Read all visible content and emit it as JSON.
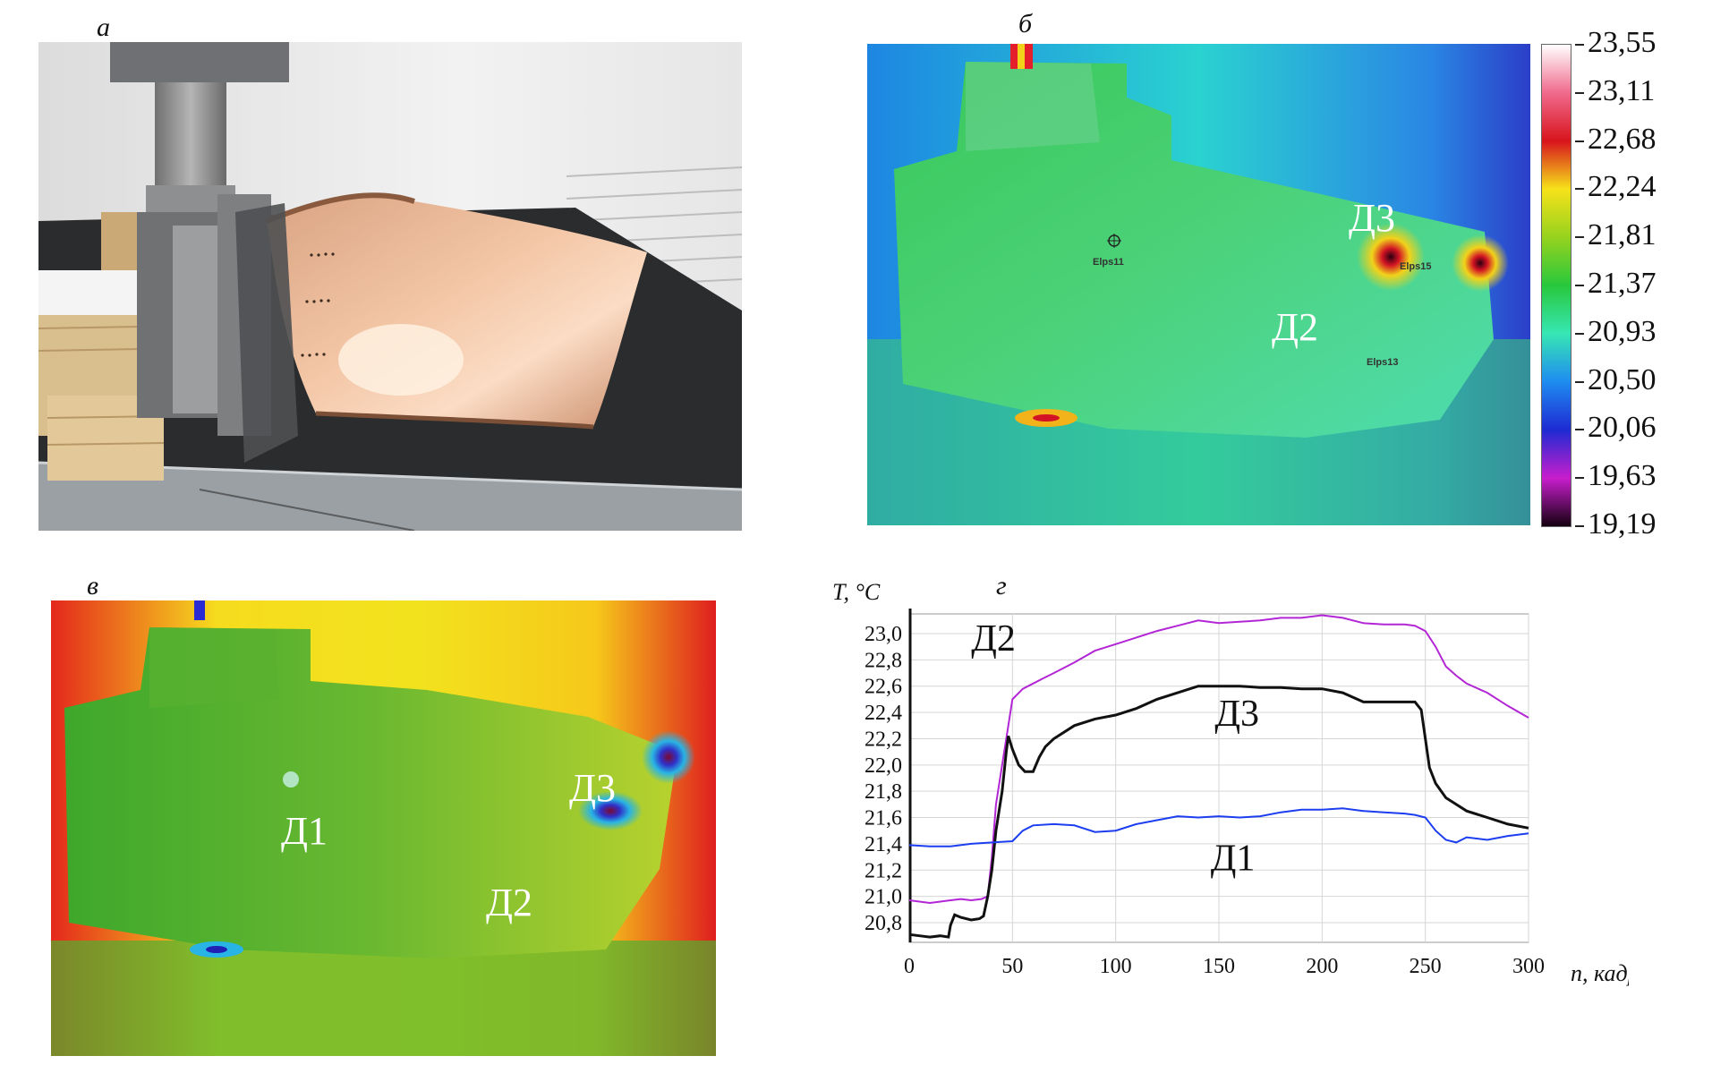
{
  "panels": {
    "a": {
      "letter": "а"
    },
    "b": {
      "letter": "б",
      "labels": {
        "d3": "Д3",
        "d2": "Д2"
      },
      "markers": {
        "e11": "Elps11",
        "e15": "Elps15",
        "e13": "Elps13"
      },
      "scale": [
        "23,55",
        "23,11",
        "22,68",
        "22,24",
        "21,81",
        "21,37",
        "20,93",
        "20,50",
        "20,06",
        "19,63",
        "19,19"
      ],
      "scale_colors": [
        "#ffffff",
        "#f06a8c",
        "#d8141c",
        "#f6e21a",
        "#96d21e",
        "#28c83c",
        "#37e6b4",
        "#1e8cf0",
        "#1e2ad2",
        "#c81ecd",
        "#14000f"
      ]
    },
    "c": {
      "letter": "в",
      "labels": {
        "d3": "Д3",
        "d1": "Д1",
        "d2": "Д2"
      }
    },
    "d": {
      "letter": "г"
    }
  },
  "chart_data": {
    "type": "line",
    "ylabel": "T, °C",
    "xlabel": "n, кадр",
    "xlim": [
      0,
      300
    ],
    "ylim": [
      20.65,
      23.15
    ],
    "x_ticks": [
      "0",
      "50",
      "100",
      "150",
      "200",
      "250",
      "300"
    ],
    "y_ticks": [
      "20,8",
      "21,0",
      "21,2",
      "21,4",
      "21,6",
      "21,8",
      "22,0",
      "22,2",
      "22,4",
      "22,6",
      "22,8",
      "23,0"
    ],
    "grid": true,
    "series": [
      {
        "name": "Д2",
        "color": "#b326d6",
        "x": [
          0,
          5,
          10,
          15,
          20,
          25,
          30,
          35,
          38,
          40,
          42,
          45,
          48,
          50,
          55,
          60,
          65,
          70,
          80,
          90,
          100,
          110,
          120,
          130,
          140,
          150,
          160,
          170,
          180,
          190,
          200,
          210,
          220,
          230,
          240,
          245,
          250,
          255,
          260,
          265,
          270,
          280,
          290,
          300
        ],
        "y": [
          20.97,
          20.96,
          20.95,
          20.96,
          20.97,
          20.98,
          20.97,
          20.98,
          21.0,
          21.3,
          21.7,
          22.0,
          22.3,
          22.5,
          22.58,
          22.62,
          22.66,
          22.7,
          22.78,
          22.87,
          22.92,
          22.97,
          23.02,
          23.06,
          23.1,
          23.08,
          23.09,
          23.1,
          23.12,
          23.12,
          23.14,
          23.12,
          23.08,
          23.07,
          23.07,
          23.06,
          23.02,
          22.9,
          22.75,
          22.68,
          22.62,
          22.55,
          22.45,
          22.36
        ]
      },
      {
        "name": "Д3",
        "color": "#111111",
        "x": [
          0,
          5,
          10,
          15,
          19,
          20,
          22,
          25,
          30,
          34,
          36,
          38,
          40,
          42,
          45,
          47,
          48,
          50,
          53,
          56,
          60,
          63,
          66,
          70,
          80,
          90,
          100,
          110,
          120,
          130,
          140,
          150,
          160,
          170,
          180,
          190,
          200,
          210,
          220,
          230,
          240,
          245,
          248,
          250,
          252,
          255,
          260,
          265,
          270,
          280,
          290,
          300
        ],
        "y": [
          20.71,
          20.7,
          20.69,
          20.7,
          20.69,
          20.78,
          20.86,
          20.84,
          20.82,
          20.83,
          20.85,
          21.0,
          21.2,
          21.5,
          21.8,
          22.1,
          22.22,
          22.12,
          22.0,
          21.95,
          21.95,
          22.06,
          22.14,
          22.2,
          22.3,
          22.35,
          22.38,
          22.43,
          22.5,
          22.55,
          22.6,
          22.6,
          22.6,
          22.59,
          22.59,
          22.58,
          22.58,
          22.55,
          22.48,
          22.48,
          22.48,
          22.48,
          22.42,
          22.2,
          21.98,
          21.86,
          21.75,
          21.7,
          21.65,
          21.6,
          21.55,
          21.52
        ]
      },
      {
        "name": "Д1",
        "color": "#1c3ef0",
        "x": [
          0,
          10,
          20,
          30,
          40,
          50,
          55,
          60,
          70,
          80,
          90,
          100,
          110,
          120,
          130,
          140,
          150,
          160,
          170,
          180,
          190,
          200,
          210,
          220,
          230,
          240,
          245,
          250,
          255,
          260,
          265,
          270,
          280,
          290,
          300
        ],
        "y": [
          21.39,
          21.38,
          21.38,
          21.4,
          21.41,
          21.42,
          21.5,
          21.54,
          21.55,
          21.54,
          21.49,
          21.5,
          21.55,
          21.58,
          21.61,
          21.6,
          21.61,
          21.6,
          21.61,
          21.64,
          21.66,
          21.66,
          21.67,
          21.65,
          21.64,
          21.63,
          21.62,
          21.6,
          21.5,
          21.43,
          21.41,
          21.45,
          21.43,
          21.46,
          21.48
        ]
      }
    ],
    "annotations": [
      {
        "text": "Д2",
        "x": 30,
        "y": 22.87
      },
      {
        "text": "Д3",
        "x": 148,
        "y": 22.3
      },
      {
        "text": "Д1",
        "x": 146,
        "y": 21.2
      }
    ]
  }
}
